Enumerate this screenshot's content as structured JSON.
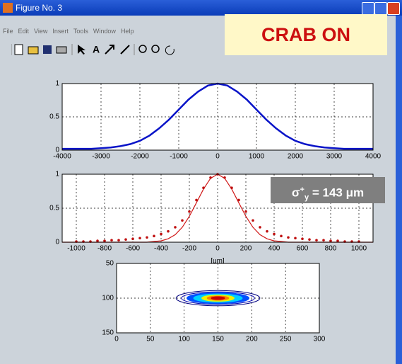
{
  "window": {
    "title": "Figure No. 3",
    "menu": [
      "File",
      "Edit",
      "View",
      "Insert",
      "Tools",
      "Window",
      "Help"
    ],
    "text_tool": "A",
    "banner": "CRAB ON"
  },
  "annotation": {
    "symbol": "σ",
    "sup": "+",
    "sub": "y",
    "text": " = 143 μm"
  },
  "chart_data": [
    {
      "type": "line",
      "xlim": [
        -4000,
        4000
      ],
      "ylim": [
        0,
        1
      ],
      "xticks": [
        -4000,
        -3000,
        -2000,
        -1000,
        0,
        1000,
        2000,
        3000,
        4000
      ],
      "yticks": [
        0,
        0.5,
        1
      ],
      "grid": true,
      "series": [
        {
          "color": "#0a14c8",
          "mode": "line",
          "x": [
            -4000,
            -3750,
            -3500,
            -3250,
            -3000,
            -2750,
            -2500,
            -2250,
            -2000,
            -1750,
            -1500,
            -1250,
            -1000,
            -750,
            -500,
            -250,
            0,
            250,
            500,
            750,
            1000,
            1250,
            1500,
            1750,
            2000,
            2250,
            2500,
            2750,
            3000,
            3250,
            3500,
            3750,
            4000
          ],
          "values": [
            0.02,
            0.02,
            0.02,
            0.02,
            0.03,
            0.04,
            0.06,
            0.09,
            0.14,
            0.22,
            0.33,
            0.46,
            0.61,
            0.76,
            0.88,
            0.97,
            1.0,
            0.97,
            0.88,
            0.76,
            0.61,
            0.46,
            0.33,
            0.22,
            0.14,
            0.09,
            0.06,
            0.04,
            0.03,
            0.02,
            0.02,
            0.02,
            0.02
          ]
        }
      ]
    },
    {
      "type": "line",
      "xlim": [
        -1100,
        1100
      ],
      "ylim": [
        0,
        1
      ],
      "xlabel": "[um]",
      "xticks": [
        -1000,
        -800,
        -600,
        -400,
        -200,
        0,
        200,
        400,
        600,
        800,
        1000
      ],
      "yticks": [
        0,
        0.5,
        1
      ],
      "grid": true,
      "series": [
        {
          "color": "#d01818",
          "mode": "line",
          "x": [
            -1100,
            -500,
            -450,
            -400,
            -350,
            -300,
            -250,
            -200,
            -150,
            -100,
            -50,
            0,
            50,
            100,
            150,
            200,
            250,
            300,
            350,
            400,
            450,
            500,
            1100
          ],
          "values": [
            0,
            0,
            0.01,
            0.02,
            0.05,
            0.11,
            0.22,
            0.38,
            0.58,
            0.78,
            0.94,
            1.0,
            0.94,
            0.78,
            0.58,
            0.38,
            0.22,
            0.11,
            0.05,
            0.02,
            0.01,
            0,
            0
          ]
        },
        {
          "color": "#c01010",
          "mode": "markers",
          "x": [
            -1000,
            -950,
            -900,
            -850,
            -800,
            -750,
            -700,
            -650,
            -600,
            -550,
            -500,
            -450,
            -400,
            -350,
            -300,
            -250,
            -200,
            -150,
            -100,
            -50,
            0,
            50,
            100,
            150,
            200,
            250,
            300,
            350,
            400,
            450,
            500,
            550,
            600,
            650,
            700,
            750,
            800,
            850,
            900,
            950,
            1000
          ],
          "values": [
            0.01,
            0.01,
            0.01,
            0.02,
            0.02,
            0.03,
            0.03,
            0.04,
            0.05,
            0.06,
            0.07,
            0.09,
            0.12,
            0.16,
            0.22,
            0.32,
            0.45,
            0.62,
            0.8,
            0.95,
            1.0,
            0.95,
            0.8,
            0.62,
            0.45,
            0.32,
            0.22,
            0.16,
            0.12,
            0.09,
            0.07,
            0.06,
            0.05,
            0.04,
            0.03,
            0.03,
            0.02,
            0.02,
            0.01,
            0.01,
            0.01
          ]
        }
      ]
    },
    {
      "type": "contour",
      "xlim": [
        0,
        300
      ],
      "ylim": [
        150,
        50
      ],
      "xticks": [
        0,
        50,
        100,
        150,
        200,
        250,
        300
      ],
      "yticks": [
        50,
        100,
        150
      ],
      "grid": true,
      "contours": [
        {
          "cx": 150,
          "cy": 100,
          "rx": 62,
          "ry": 11,
          "color": "#000080",
          "fill": false
        },
        {
          "cx": 150,
          "cy": 100,
          "rx": 54,
          "ry": 9,
          "color": "#0000b0",
          "fill": false
        },
        {
          "cx": 150,
          "cy": 100,
          "rx": 46,
          "ry": 8,
          "color": "#0050ff",
          "fill": true
        },
        {
          "cx": 150,
          "cy": 100,
          "rx": 36,
          "ry": 6,
          "color": "#00d0ff",
          "fill": true
        },
        {
          "cx": 150,
          "cy": 100,
          "rx": 24,
          "ry": 4.5,
          "color": "#f0f000",
          "fill": true
        },
        {
          "cx": 150,
          "cy": 100,
          "rx": 16,
          "ry": 3,
          "color": "#ff8000",
          "fill": true
        },
        {
          "cx": 150,
          "cy": 100,
          "rx": 10,
          "ry": 2,
          "color": "#cc0000",
          "fill": true
        }
      ]
    }
  ]
}
